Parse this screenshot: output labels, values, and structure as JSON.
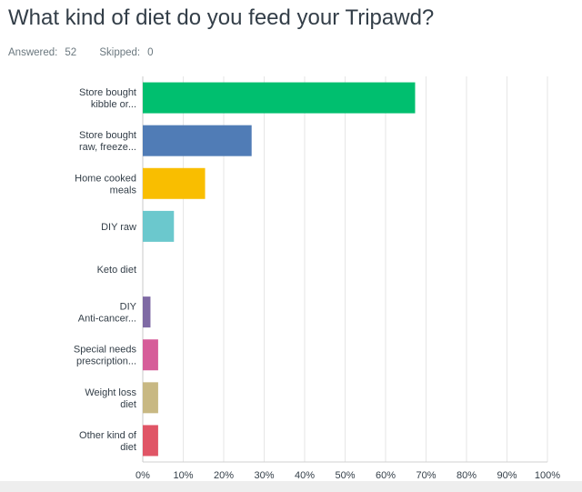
{
  "question": {
    "title": "What kind of diet do you feed your Tripawd?"
  },
  "stats": {
    "answered_label": "Answered:",
    "answered_value": "52",
    "skipped_label": "Skipped:",
    "skipped_value": "0"
  },
  "chart_data": {
    "type": "bar",
    "orientation": "horizontal",
    "categories": [
      [
        "Store bought",
        "kibble or..."
      ],
      [
        "Store bought",
        "raw, freeze..."
      ],
      [
        "Home cooked",
        "meals"
      ],
      [
        "DIY raw"
      ],
      [
        "Keto diet"
      ],
      [
        "DIY",
        "Anti-cancer..."
      ],
      [
        "Special needs",
        "prescription..."
      ],
      [
        "Weight loss",
        "diet"
      ],
      [
        "Other kind of",
        "diet"
      ]
    ],
    "values": [
      67.3,
      26.9,
      15.4,
      7.7,
      0,
      1.9,
      3.8,
      3.8,
      3.8
    ],
    "colors": [
      "#00bf6f",
      "#507cb6",
      "#f9be00",
      "#6bc8cd",
      "#ff8b4f",
      "#7f6aa4",
      "#d65d99",
      "#c8b883",
      "#e05566"
    ],
    "xlim": [
      0,
      100
    ],
    "xticks": [
      "0%",
      "10%",
      "20%",
      "30%",
      "40%",
      "50%",
      "60%",
      "70%",
      "80%",
      "90%",
      "100%"
    ],
    "grid": true,
    "legend": false
  }
}
